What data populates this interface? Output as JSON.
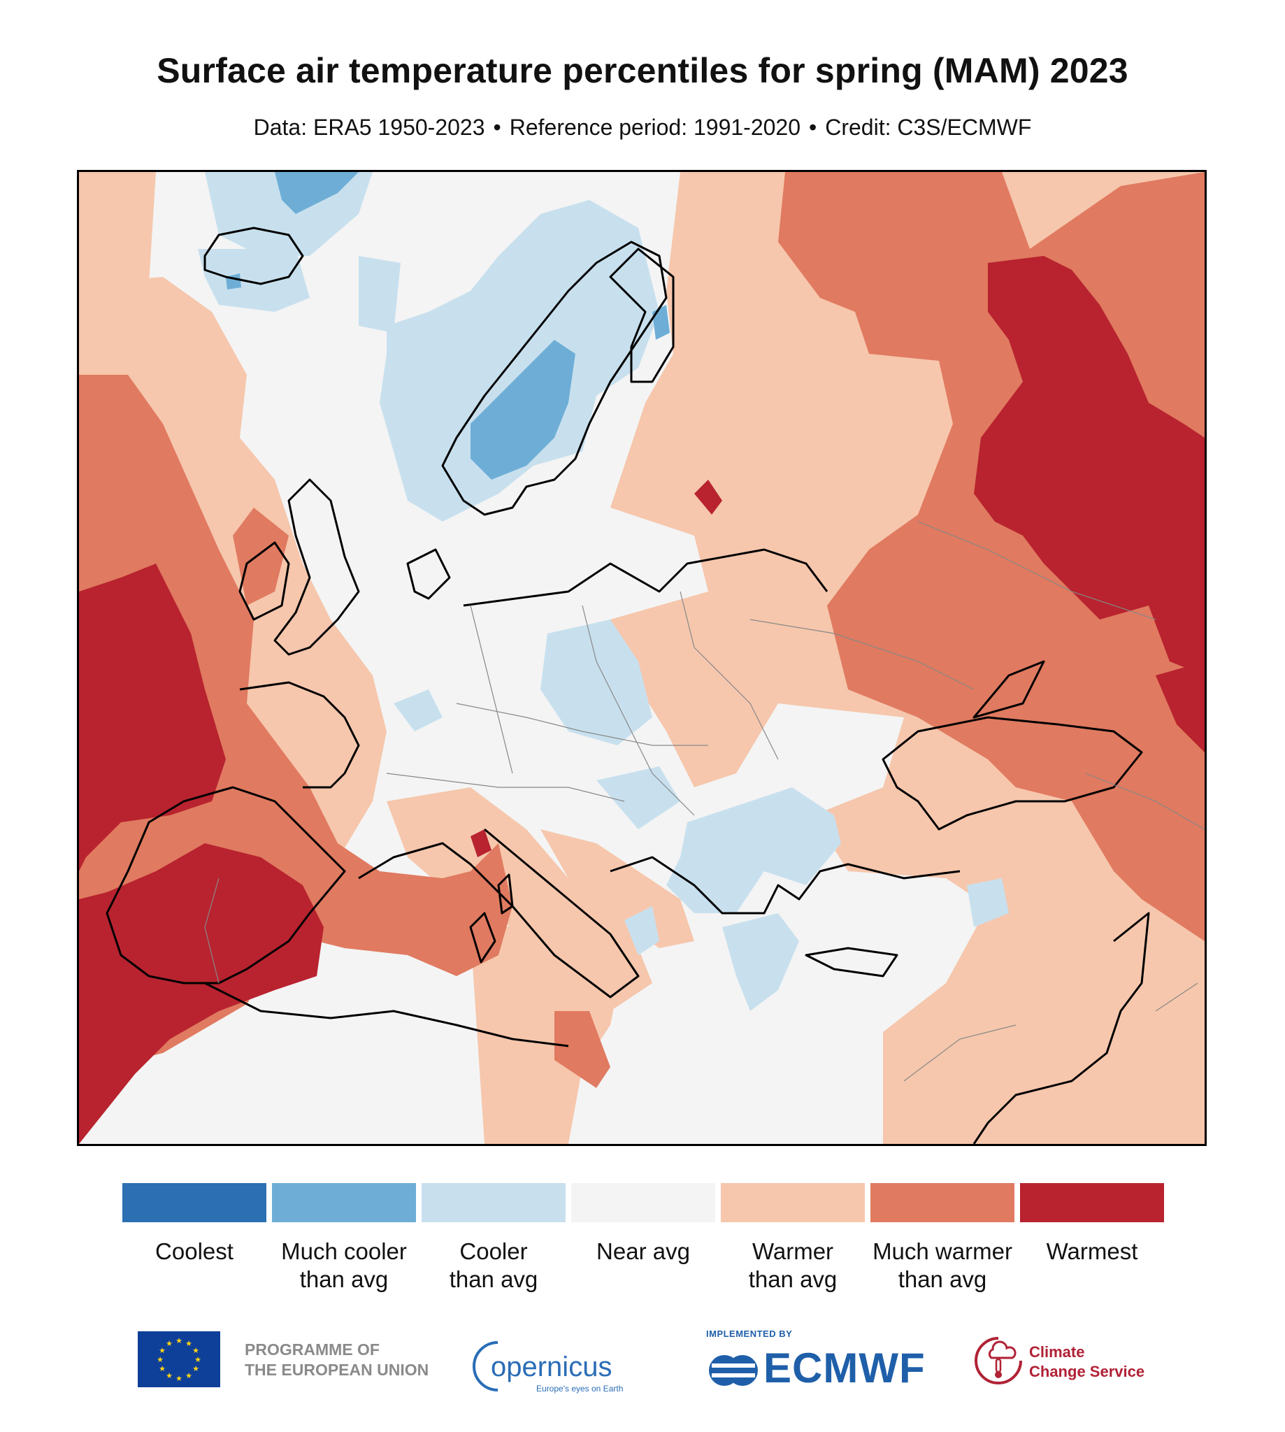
{
  "title": "Surface air temperature percentiles for spring (MAM) 2023",
  "subtitle": {
    "data": "Data: ERA5 1950-2023",
    "reference": "Reference period: 1991-2020",
    "credit": "Credit: C3S/ECMWF",
    "separator": "•"
  },
  "legend": {
    "categories": [
      {
        "label_line1": "Coolest",
        "label_line2": "",
        "color": "#2c6fb2"
      },
      {
        "label_line1": "Much cooler",
        "label_line2": "than avg",
        "color": "#6eaed6"
      },
      {
        "label_line1": "Cooler",
        "label_line2": "than avg",
        "color": "#c8e0ee"
      },
      {
        "label_line1": "Near avg",
        "label_line2": "",
        "color": "#f4f4f4"
      },
      {
        "label_line1": "Warmer",
        "label_line2": "than avg",
        "color": "#f6c7ad"
      },
      {
        "label_line1": "Much warmer",
        "label_line2": "than avg",
        "color": "#e07a60"
      },
      {
        "label_line1": "Warmest",
        "label_line2": "",
        "color": "#b8232f"
      }
    ]
  },
  "map": {
    "region": "Europe",
    "regions": [
      {
        "name": "atlantic-west-warmest",
        "category": 6
      },
      {
        "name": "iberia-warmest",
        "category": 6
      },
      {
        "name": "russia-warmest",
        "category": 6
      },
      {
        "name": "east-much-warmer",
        "category": 5
      },
      {
        "name": "mediterranean-much-warmer",
        "category": 5
      },
      {
        "name": "scandinavia-cooler",
        "category": 2
      },
      {
        "name": "norway-much-cooler",
        "category": 1
      },
      {
        "name": "balkans-cooler",
        "category": 2
      },
      {
        "name": "central-europe-near-avg",
        "category": 3
      }
    ]
  },
  "footer": {
    "eu_line1": "PROGRAMME OF",
    "eu_line2": "THE EUROPEAN UNION",
    "copernicus_word": "opernicus",
    "copernicus_tagline": "Europe's eyes on Earth",
    "implemented_by": "IMPLEMENTED BY",
    "ecmwf": "ECMWF",
    "ccs_line1": "Climate",
    "ccs_line2": "Change Service"
  }
}
